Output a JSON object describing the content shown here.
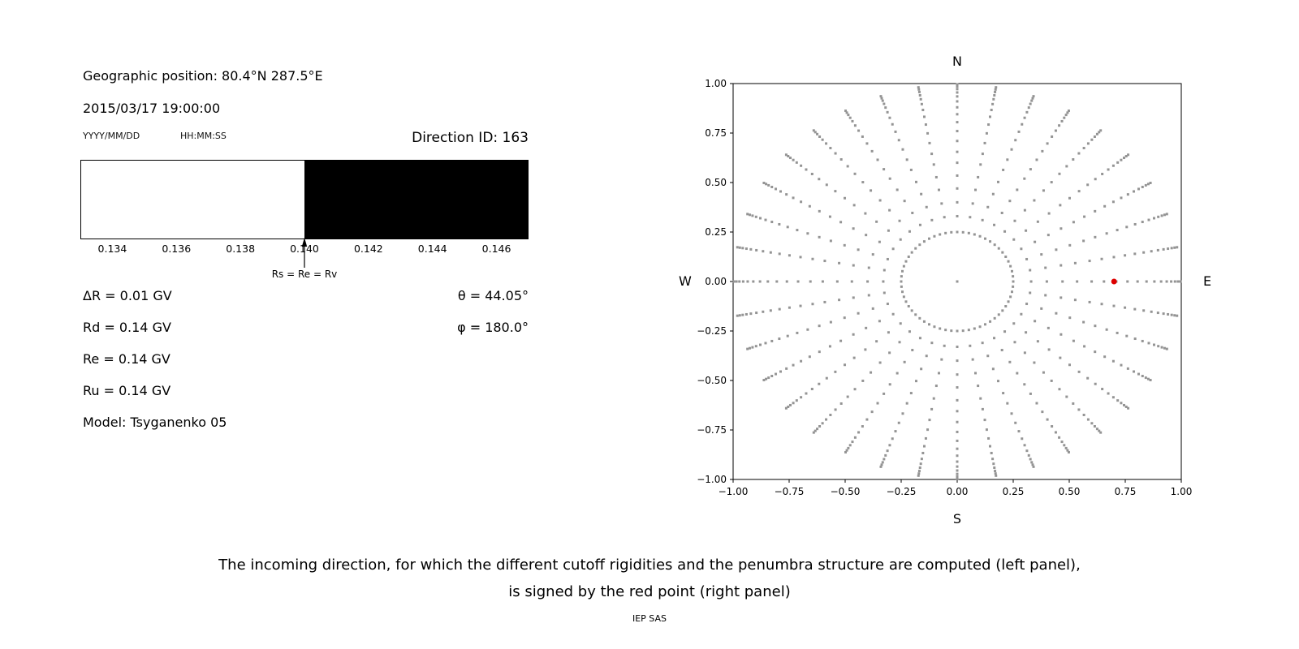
{
  "left_panel": {
    "geographic_position": "Geographic position: 80.4°N 287.5°E",
    "datetime": "2015/03/17 19:00:00",
    "date_format_label": "YYYY/MM/DD",
    "time_format_label": "HH:MM:SS",
    "direction_id": "Direction ID: 163",
    "values": {
      "delta_r": "ΔR = 0.01 GV",
      "theta": "θ = 44.05°",
      "rd": "Rd = 0.14 GV",
      "phi": "φ = 180.0°",
      "re": "Re = 0.14 GV",
      "ru": "Ru = 0.14 GV",
      "model": "Model: Tsyganenko 05"
    }
  },
  "caption": {
    "line1": "The incoming direction, for which the different cutoff rigidities and the penumbra structure are computed (left panel),",
    "line2": "is signed by the red point (right panel)",
    "credit": "IEP SAS"
  },
  "chart_data": [
    {
      "id": "penumbra-structure",
      "type": "area",
      "xlim": [
        0.133,
        0.147
      ],
      "xticks": [
        0.134,
        0.136,
        0.138,
        0.14,
        0.142,
        0.144,
        0.146
      ],
      "tick_labels": [
        "0.134",
        "0.136",
        "0.138",
        "0.140",
        "0.142",
        "0.144",
        "0.146"
      ],
      "segments": [
        {
          "from": 0.133,
          "to": 0.14,
          "color": "#ffffff"
        },
        {
          "from": 0.14,
          "to": 0.147,
          "color": "#000000"
        }
      ],
      "marker": {
        "x": 0.14,
        "label": "Rs = Re = Rv"
      }
    },
    {
      "id": "direction-map",
      "type": "scatter",
      "xlim": [
        -1,
        1
      ],
      "ylim": [
        -1,
        1
      ],
      "xticks": [
        -1,
        -0.75,
        -0.5,
        -0.25,
        0,
        0.25,
        0.5,
        0.75,
        1
      ],
      "yticks": [
        -1,
        -0.75,
        -0.5,
        -0.25,
        0,
        0.25,
        0.5,
        0.75,
        1
      ],
      "xtick_labels": [
        "−1.00",
        "−0.75",
        "−0.50",
        "−0.25",
        "0.00",
        "0.25",
        "0.50",
        "0.75",
        "1.00"
      ],
      "ytick_labels": [
        "−1.00",
        "−0.75",
        "−0.50",
        "−0.25",
        "0.00",
        "0.25",
        "0.50",
        "0.75",
        "1.00"
      ],
      "direction_labels": {
        "top": "N",
        "bottom": "S",
        "left": "W",
        "right": "E"
      },
      "dot_color": "#949494",
      "grid": false,
      "spokes": {
        "count": 36,
        "start_angle_deg": 0,
        "step_deg": 10,
        "radii": [
          0.33,
          0.4,
          0.47,
          0.535,
          0.6,
          0.655,
          0.71,
          0.76,
          0.805,
          0.845,
          0.88,
          0.91,
          0.935,
          0.955,
          0.972,
          0.985,
          0.996
        ]
      },
      "ring": {
        "radius": 0.25,
        "points": 60
      },
      "center_point": {
        "x": 0,
        "y": 0
      },
      "red_point": {
        "x": 0.7,
        "y": 0.0,
        "color": "#dd0000"
      }
    }
  ]
}
